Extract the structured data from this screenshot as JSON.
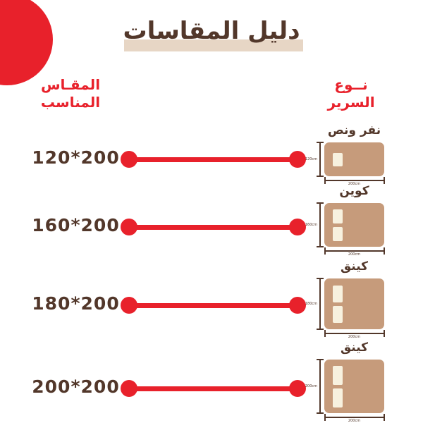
{
  "title": "دليل المقاسات",
  "columns": {
    "size_header_line1": "المقـاس",
    "size_header_line2": "المناسب",
    "type_header_line1": "نــوع",
    "type_header_line2": "السرير"
  },
  "colors": {
    "accent_red": "#e8212b",
    "text_brown": "#52372a",
    "bed_tan": "#c69b7b",
    "pillow_cream": "#f7f1df",
    "title_highlight_beige": "#e7d6c5"
  },
  "chart_data": {
    "type": "table",
    "title": "دليل المقاسات",
    "columns": [
      "المقـاس المناسب",
      "نوع السرير"
    ],
    "rows": [
      {
        "size": "120*200",
        "bed_type": "نفر ونص",
        "bed_height_cm": "120cm",
        "bed_width_cm": "200cm",
        "pillows": 1
      },
      {
        "size": "160*200",
        "bed_type": "كوين",
        "bed_height_cm": "160cm",
        "bed_width_cm": "200cm",
        "pillows": 2
      },
      {
        "size": "180*200",
        "bed_type": "كينق",
        "bed_height_cm": "180cm",
        "bed_width_cm": "200cm",
        "pillows": 2
      },
      {
        "size": "200*200",
        "bed_type": "كينق",
        "bed_height_cm": "200cm",
        "bed_width_cm": "200cm",
        "pillows": 2
      }
    ]
  },
  "rows": [
    {
      "size": "120*200",
      "type": "نفر ونص",
      "height_label": "120cm",
      "width_label": "200cm"
    },
    {
      "size": "160*200",
      "type": "كوين",
      "height_label": "160cm",
      "width_label": "200cm"
    },
    {
      "size": "180*200",
      "type": "كينق",
      "height_label": "180cm",
      "width_label": "200cm"
    },
    {
      "size": "200*200",
      "type": "كينق",
      "height_label": "200cm",
      "width_label": "200cm"
    }
  ]
}
